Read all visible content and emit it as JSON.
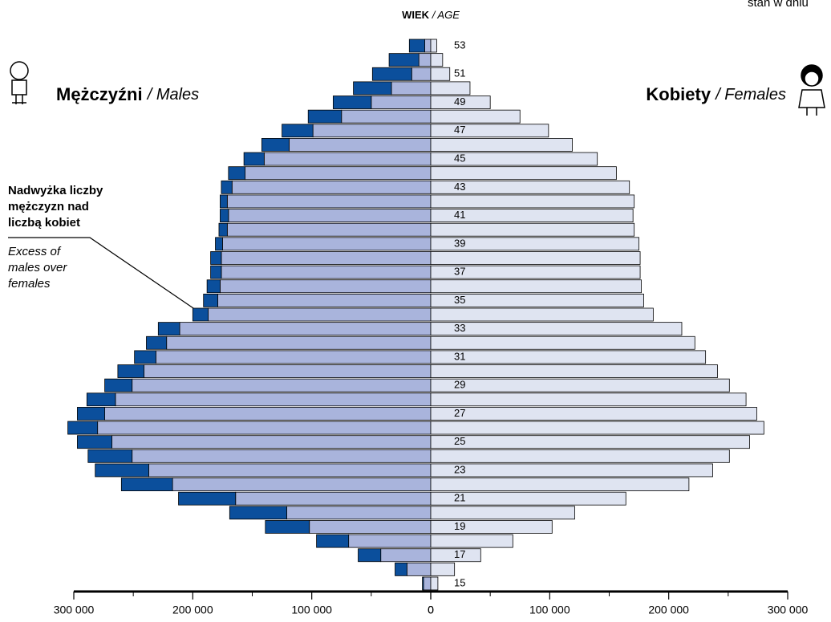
{
  "chart_data": {
    "type": "pyramid",
    "title": {
      "bold": "WIEK",
      "italic": "/ AGE"
    },
    "corner_note": "stan w dniu",
    "annotation": {
      "bold_lines": [
        "Nadwyżka liczby",
        "mężczyzn nad",
        "liczbą kobiet"
      ],
      "italic_lines": [
        "Excess of",
        "males over",
        "females"
      ]
    },
    "categories": [
      "15",
      null,
      "17",
      null,
      "19",
      null,
      "21",
      null,
      "23",
      null,
      "25",
      null,
      "27",
      null,
      "29",
      null,
      "31",
      null,
      "33",
      null,
      "35",
      null,
      "37",
      null,
      "39",
      null,
      "41",
      null,
      "43",
      null,
      "45",
      null,
      "47",
      null,
      "49",
      null,
      "51",
      null,
      "53"
    ],
    "series": [
      {
        "name": "Mężczyźni",
        "name_en": "/ Males",
        "side": "left",
        "color": "#a9b4dc",
        "excess_color": "#0b4f9c",
        "values": [
          7000,
          30000,
          61000,
          96000,
          139000,
          169000,
          212000,
          260000,
          282000,
          288000,
          297000,
          305000,
          297000,
          289000,
          274000,
          263000,
          249000,
          239000,
          229000,
          200000,
          191000,
          188000,
          185000,
          185000,
          181000,
          178000,
          177000,
          177000,
          176000,
          170000,
          157000,
          142000,
          125000,
          103000,
          82000,
          65000,
          49000,
          35000,
          18000
        ]
      },
      {
        "name": "Kobiety",
        "name_en": "/ Females",
        "side": "right",
        "color": "#dfe4f1",
        "values": [
          6000,
          20000,
          42000,
          69000,
          102000,
          121000,
          164000,
          217000,
          237000,
          251000,
          268000,
          280000,
          274000,
          265000,
          251000,
          241000,
          231000,
          222000,
          211000,
          187000,
          179000,
          177000,
          176000,
          176000,
          175000,
          171000,
          170000,
          171000,
          167000,
          156000,
          140000,
          119000,
          99000,
          75000,
          50000,
          33000,
          16000,
          10000,
          5000
        ]
      }
    ],
    "xlim": [
      0,
      300000
    ],
    "xticks": [
      0,
      {
        "value": 100000,
        "label": "100 000"
      },
      {
        "value": 200000,
        "label": "200 000"
      },
      {
        "value": 300000,
        "label": "300 000"
      }
    ],
    "minor_xticks": [
      50000,
      150000,
      250000
    ]
  }
}
